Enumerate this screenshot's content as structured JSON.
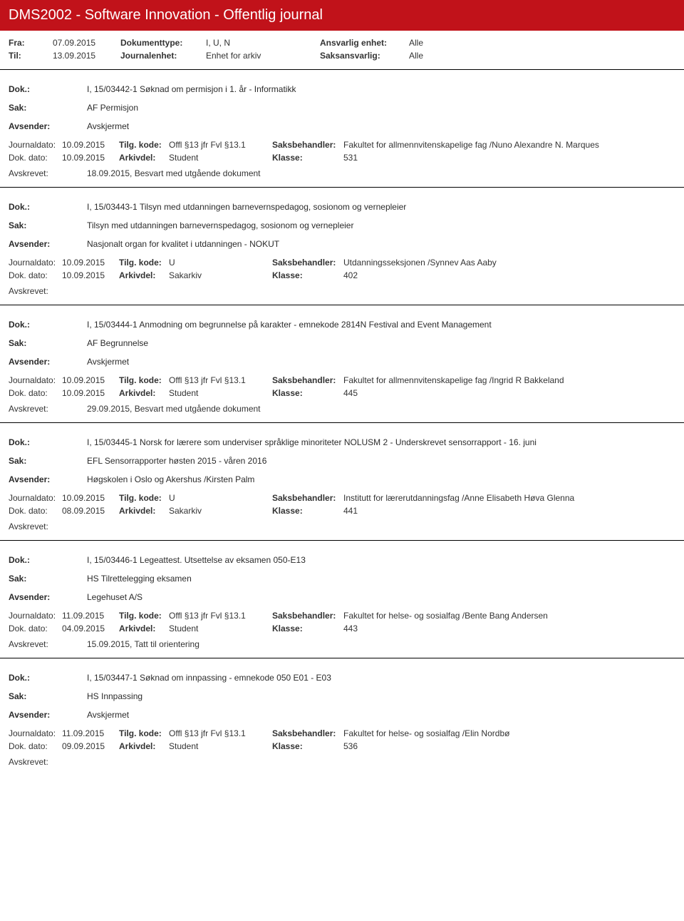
{
  "header": {
    "title": "DMS2002 - Software Innovation - Offentlig journal"
  },
  "meta": {
    "fra_label": "Fra:",
    "fra": "07.09.2015",
    "til_label": "Til:",
    "til": "13.09.2015",
    "doktype_label": "Dokumenttype:",
    "doktype": "I, U, N",
    "journalenhet_label": "Journalenhet:",
    "journalenhet": "Enhet for arkiv",
    "ansvarlig_label": "Ansvarlig enhet:",
    "ansvarlig": "Alle",
    "saks_label": "Saksansvarlig:",
    "saks": "Alle"
  },
  "labels": {
    "dok": "Dok.:",
    "sak": "Sak:",
    "avsender": "Avsender:",
    "journaldato": "Journaldato:",
    "tilg": "Tilg. kode:",
    "saksbeh": "Saksbehandler:",
    "dokdato": "Dok. dato:",
    "arkivdel": "Arkivdel:",
    "klasse": "Klasse:",
    "avskrevet": "Avskrevet:"
  },
  "entries": [
    {
      "dok": "I, 15/03442-1 Søknad om permisjon i 1. år - Informatikk",
      "sak": "AF Permisjon",
      "avsender": "Avskjermet",
      "journaldato": "10.09.2015",
      "tilg": "Offl §13 jfr Fvl §13.1",
      "saksbeh": "Fakultet for allmennvitenskapelige fag /Nuno Alexandre N. Marques",
      "dokdato": "10.09.2015",
      "arkivdel": "Student",
      "klasse": "531",
      "avskrevet": "18.09.2015, Besvart med utgående dokument"
    },
    {
      "dok": "I, 15/03443-1 Tilsyn med utdanningen barnevernspedagog,  sosionom og vernepleier",
      "sak": "Tilsyn med utdanningen barnevernspedagog,  sosionom og vernepleier",
      "avsender": "Nasjonalt organ for kvalitet i utdanningen - NOKUT",
      "journaldato": "10.09.2015",
      "tilg": "U",
      "saksbeh": "Utdanningsseksjonen /Synnev Aas Aaby",
      "dokdato": "10.09.2015",
      "arkivdel": "Sakarkiv",
      "klasse": "402",
      "avskrevet": ""
    },
    {
      "dok": "I, 15/03444-1 Anmodning om begrunnelse på karakter - emnekode 2814N Festival and Event Management",
      "sak": "AF Begrunnelse",
      "avsender": "Avskjermet",
      "journaldato": "10.09.2015",
      "tilg": "Offl §13 jfr Fvl §13.1",
      "saksbeh": "Fakultet for allmennvitenskapelige fag /Ingrid R Bakkeland",
      "dokdato": "10.09.2015",
      "arkivdel": "Student",
      "klasse": "445",
      "avskrevet": "29.09.2015, Besvart med utgående dokument"
    },
    {
      "dok": "I, 15/03445-1 Norsk for lærere som underviser språklige minoriteter NOLUSM 2 - Underskrevet sensorrapport - 16. juni",
      "sak": "EFL Sensorrapporter høsten 2015 - våren 2016",
      "avsender": "Høgskolen i Oslo og Akershus /Kirsten Palm",
      "journaldato": "10.09.2015",
      "tilg": "U",
      "saksbeh": "Institutt for lærerutdanningsfag /Anne Elisabeth Høva Glenna",
      "dokdato": "08.09.2015",
      "arkivdel": "Sakarkiv",
      "klasse": "441",
      "avskrevet": ""
    },
    {
      "dok": "I, 15/03446-1 Legeattest. Utsettelse av eksamen 050-E13",
      "sak": "HS Tilrettelegging eksamen",
      "avsender": "Legehuset A/S",
      "journaldato": "11.09.2015",
      "tilg": "Offl §13 jfr Fvl §13.1",
      "saksbeh": "Fakultet for helse- og sosialfag /Bente Bang Andersen",
      "dokdato": "04.09.2015",
      "arkivdel": "Student",
      "klasse": "443",
      "avskrevet": "15.09.2015, Tatt til orientering"
    },
    {
      "dok": "I, 15/03447-1 Søknad om innpassing - emnekode  050 E01 - E03",
      "sak": "HS Innpassing",
      "avsender": "Avskjermet",
      "journaldato": "11.09.2015",
      "tilg": "Offl §13 jfr Fvl §13.1",
      "saksbeh": "Fakultet for helse- og sosialfag /Elin Nordbø",
      "dokdato": "09.09.2015",
      "arkivdel": "Student",
      "klasse": "536",
      "avskrevet": ""
    }
  ]
}
